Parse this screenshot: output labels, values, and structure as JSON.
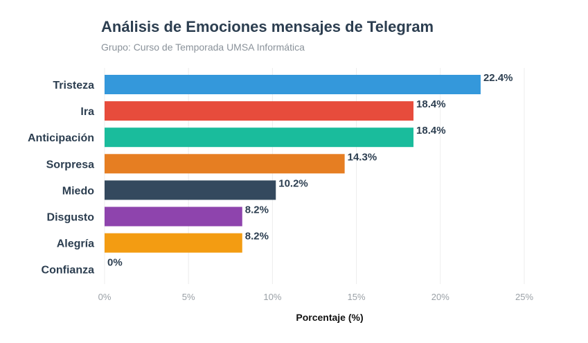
{
  "chart_data": {
    "type": "bar",
    "orientation": "horizontal",
    "title": "Análisis de Emociones mensajes de Telegram",
    "subtitle": "Grupo: Curso de Temporada UMSA Informática",
    "xlabel": "Porcentaje (%)",
    "ylabel": "",
    "xlim": [
      0,
      25
    ],
    "ticks": [
      0,
      5,
      10,
      15,
      20,
      25
    ],
    "tick_labels": [
      "0%",
      "5%",
      "10%",
      "15%",
      "20%",
      "25%"
    ],
    "grid": true,
    "categories": [
      "Tristeza",
      "Ira",
      "Anticipación",
      "Sorpresa",
      "Miedo",
      "Disgusto",
      "Alegría",
      "Confianza"
    ],
    "values": [
      22.4,
      18.4,
      18.4,
      14.3,
      10.2,
      8.2,
      8.2,
      0
    ],
    "value_labels": [
      "22.4%",
      "18.4%",
      "18.4%",
      "14.3%",
      "10.2%",
      "8.2%",
      "8.2%",
      "0%"
    ],
    "colors": [
      "#3498db",
      "#e74c3c",
      "#1abc9c",
      "#e67e22",
      "#34495e",
      "#8e44ad",
      "#f39c12",
      "#27ae60"
    ]
  }
}
